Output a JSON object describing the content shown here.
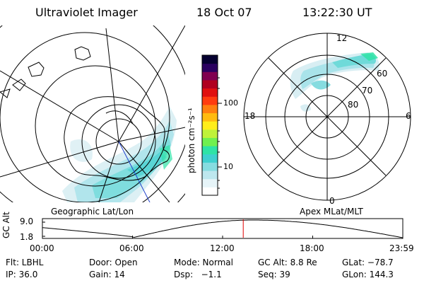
{
  "header": {
    "instrument": "Ultraviolet Imager",
    "date": "18 Oct 07",
    "time": "13:22:30 UT"
  },
  "left_panel": {
    "caption": "Geographic Lat/Lon"
  },
  "right_panel": {
    "caption": "Apex MLat/MLT",
    "mlt_labels": {
      "top": "12",
      "left": "18",
      "right": "6",
      "bottom": "0"
    },
    "lat_labels": [
      "60",
      "70",
      "80"
    ]
  },
  "colorbar": {
    "unit_label": "photon cm⁻²s⁻¹",
    "ticks": [
      "100",
      "10"
    ],
    "colors": [
      "#ffffff",
      "#e6f4f8",
      "#bde7ee",
      "#86dce0",
      "#3fd0cf",
      "#2fe3a6",
      "#70f050",
      "#bff23a",
      "#ffee1a",
      "#ffbb10",
      "#ff7f10",
      "#ff3c10",
      "#e01010",
      "#b00020",
      "#800050",
      "#2a0060",
      "#050030"
    ]
  },
  "orbit_plot": {
    "ylabel": "GC Alt",
    "y_ticks": [
      "9.0",
      "1.8"
    ],
    "x_ticks": [
      "00:00",
      "06:00",
      "12:00",
      "18:00",
      "23:59"
    ],
    "current_time_hours": 13.375
  },
  "status": {
    "filter": "Flt: LBHL",
    "door": "Door: Open",
    "mode": "Mode: Normal",
    "gc_alt": "GC Alt: 8.8 Re",
    "glat": "GLat: −78.7",
    "ip": "IP: 36.0",
    "gain": "Gain: 14",
    "dsp": "Dsp:   −1.1",
    "seq": "Seq: 39",
    "glon": "GLon: 144.3"
  }
}
